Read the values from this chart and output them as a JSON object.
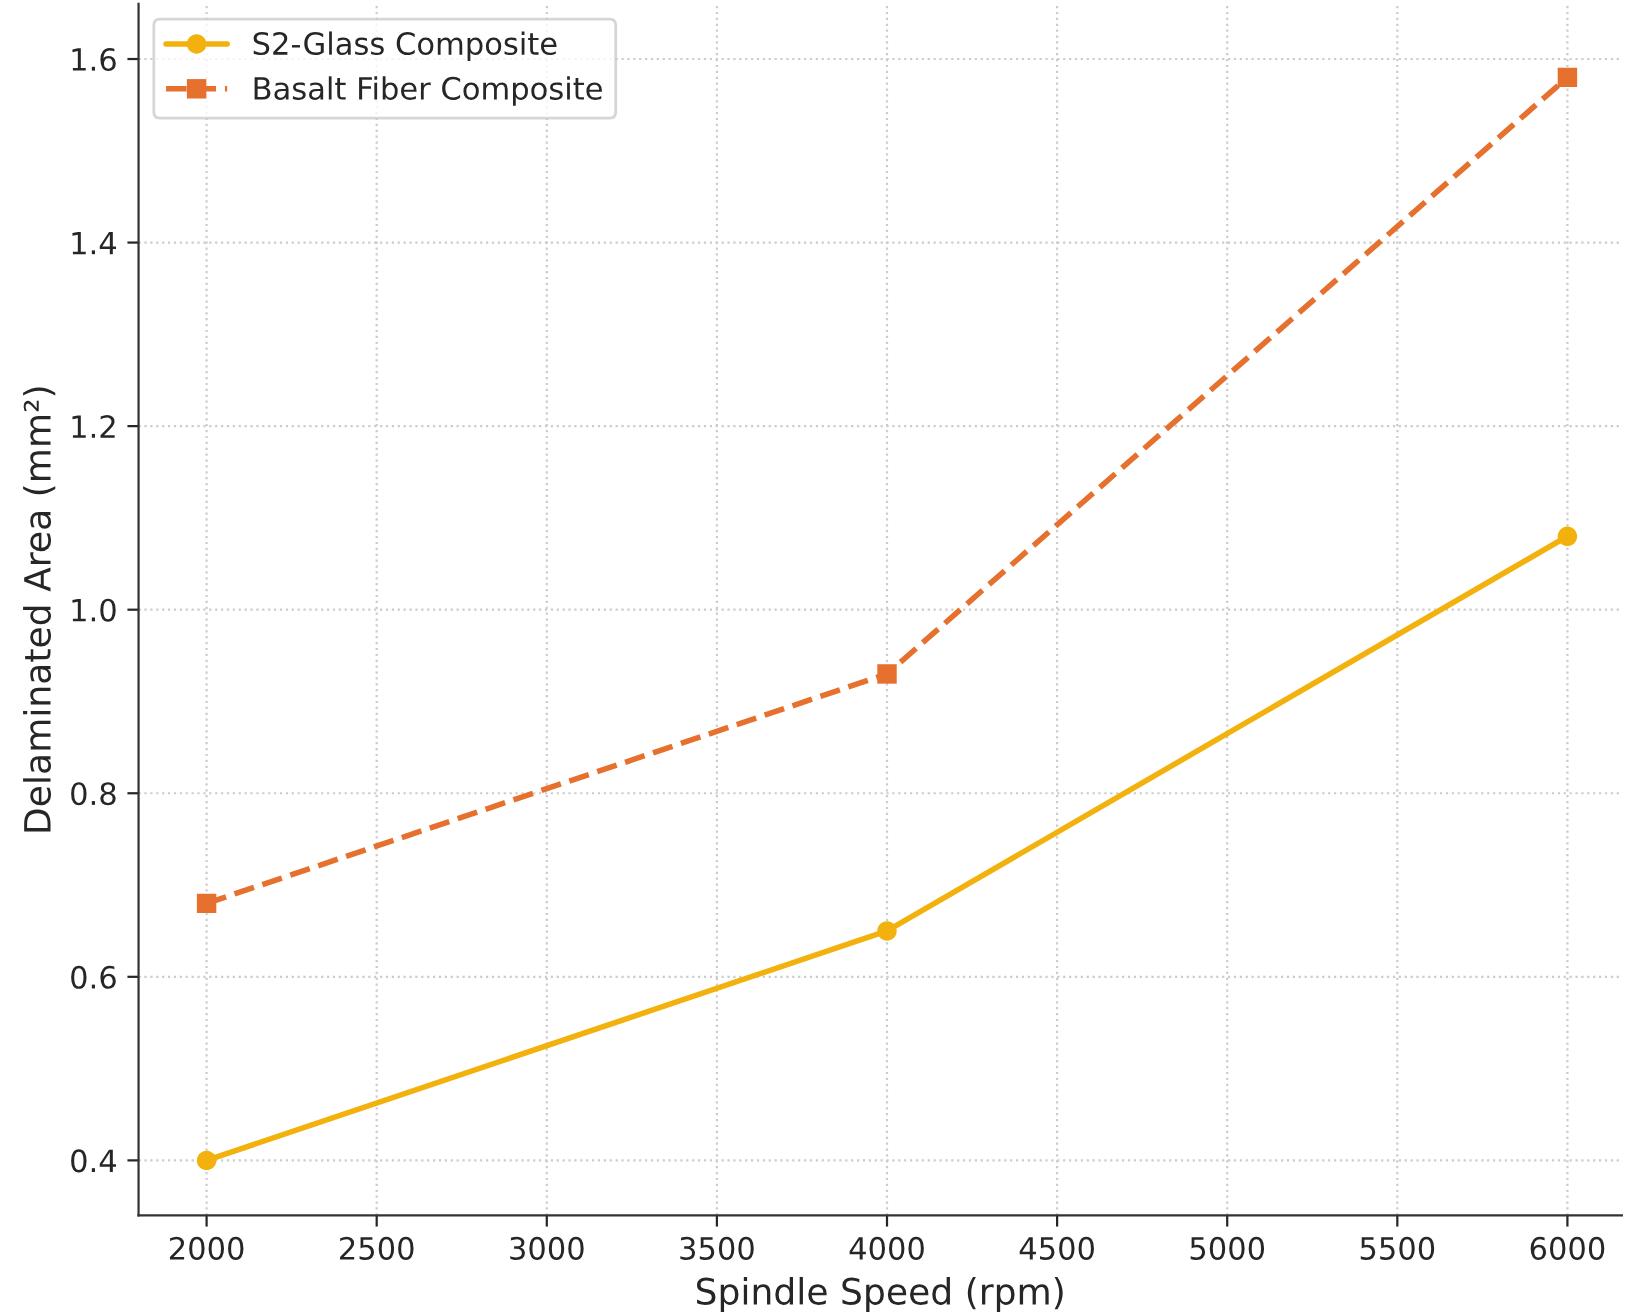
{
  "chart_data": {
    "type": "line",
    "xlabel": "Spindle Speed (rpm)",
    "ylabel": "Delaminated Area (mm²)",
    "x": [
      2000,
      4000,
      6000
    ],
    "series": [
      {
        "name": "S2-Glass Composite",
        "color": "#f2b10d",
        "values": [
          0.4,
          0.65,
          1.08
        ],
        "marker": "circle",
        "line_style": "solid"
      },
      {
        "name": "Basalt Fiber Composite",
        "color": "#e6702e",
        "values": [
          0.68,
          0.93,
          1.58
        ],
        "marker": "square",
        "line_style": "dashed"
      }
    ],
    "xlim": [
      1800,
      6160
    ],
    "ylim": [
      0.34,
      1.66
    ],
    "xticks": [
      2000,
      2500,
      3000,
      3500,
      4000,
      4500,
      5000,
      5500,
      6000
    ],
    "yticks": [
      0.4,
      0.6,
      0.8,
      {
        "value": 1,
        "label": "1.0"
      },
      1.2,
      1.4,
      1.6
    ],
    "grid": true,
    "legend": "top left"
  }
}
